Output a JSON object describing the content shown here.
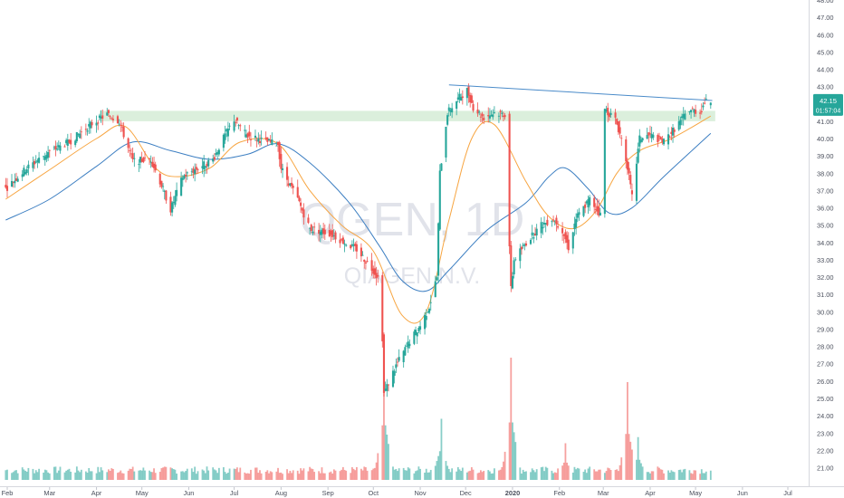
{
  "symbol": {
    "ticker": "QGEN",
    "interval": "1D",
    "company": "QIAGEN N.V."
  },
  "price_badge": {
    "price": "42.15",
    "countdown": "01:57:04"
  },
  "colors": {
    "up": "#26a69a",
    "down": "#ef5350",
    "ma_fast": "#f7a541",
    "ma_slow": "#3d7fc2",
    "trendline": "#4a8bc9",
    "zone": "#c8e6c9",
    "badge": "#26a69a"
  },
  "chart_data": {
    "type": "candlestick",
    "title": "",
    "y_axis": {
      "ylim": [
        20.4,
        48.0
      ],
      "ticks": [
        "21.00",
        "22.00",
        "23.00",
        "24.00",
        "25.00",
        "26.00",
        "27.00",
        "28.00",
        "29.00",
        "30.00",
        "31.00",
        "32.00",
        "33.00",
        "34.00",
        "35.00",
        "36.00",
        "37.00",
        "38.00",
        "39.00",
        "40.00",
        "41.00",
        "42.00",
        "43.00",
        "44.00",
        "45.00",
        "46.00",
        "47.00",
        "48.00"
      ]
    },
    "x_axis": {
      "months": [
        "Feb",
        "Mar",
        "Apr",
        "May",
        "Jun",
        "Jul",
        "Aug",
        "Sep",
        "Oct",
        "Nov",
        "Dec",
        "2020",
        "Feb",
        "Mar",
        "Apr",
        "May",
        "Jun",
        "Jul"
      ]
    },
    "price_path": [
      [
        "2019-01-31",
        37.1
      ],
      [
        "2019-02-14",
        38.3
      ],
      [
        "2019-02-28",
        39.2
      ],
      [
        "2019-03-14",
        39.8
      ],
      [
        "2019-03-28",
        40.8
      ],
      [
        "2019-04-08",
        41.4
      ],
      [
        "2019-04-16",
        41.0
      ],
      [
        "2019-04-25",
        38.7
      ],
      [
        "2019-05-07",
        38.8
      ],
      [
        "2019-05-14",
        37.3
      ],
      [
        "2019-05-20",
        35.9
      ],
      [
        "2019-05-28",
        37.8
      ],
      [
        "2019-06-07",
        38.3
      ],
      [
        "2019-06-17",
        38.8
      ],
      [
        "2019-06-25",
        40.2
      ],
      [
        "2019-07-01",
        41.1
      ],
      [
        "2019-07-09",
        40.2
      ],
      [
        "2019-07-23",
        39.8
      ],
      [
        "2019-07-30",
        39.7
      ],
      [
        "2019-08-01",
        38.3
      ],
      [
        "2019-08-12",
        36.5
      ],
      [
        "2019-08-20",
        34.8
      ],
      [
        "2019-09-03",
        34.5
      ],
      [
        "2019-09-12",
        34.0
      ],
      [
        "2019-09-20",
        33.6
      ],
      [
        "2019-10-01",
        32.4
      ],
      [
        "2019-10-06",
        31.7
      ],
      [
        "2019-10-08",
        25.3
      ],
      [
        "2019-10-16",
        26.9
      ],
      [
        "2019-10-25",
        28.3
      ],
      [
        "2019-11-01",
        29.2
      ],
      [
        "2019-11-07",
        30.3
      ],
      [
        "2019-11-12",
        32.0
      ],
      [
        "2019-11-14",
        38.0
      ],
      [
        "2019-11-19",
        41.5
      ],
      [
        "2019-11-26",
        42.3
      ],
      [
        "2019-12-02",
        42.8
      ],
      [
        "2019-12-06",
        41.8
      ],
      [
        "2019-12-13",
        41.2
      ],
      [
        "2019-12-20",
        41.5
      ],
      [
        "2019-12-27",
        41.4
      ],
      [
        "2019-12-31",
        31.3
      ],
      [
        "2020-01-02",
        33.0
      ],
      [
        "2020-01-10",
        34.0
      ],
      [
        "2020-01-20",
        35.0
      ],
      [
        "2020-01-28",
        35.4
      ],
      [
        "2020-02-03",
        34.7
      ],
      [
        "2020-02-07",
        33.7
      ],
      [
        "2020-02-12",
        35.4
      ],
      [
        "2020-02-21",
        36.5
      ],
      [
        "2020-02-28",
        35.6
      ],
      [
        "2020-03-02",
        41.7
      ],
      [
        "2020-03-09",
        41.1
      ],
      [
        "2020-03-13",
        40.0
      ],
      [
        "2020-03-17",
        38.4
      ],
      [
        "2020-03-20",
        36.6
      ],
      [
        "2020-03-25",
        40.0
      ],
      [
        "2020-04-01",
        40.2
      ],
      [
        "2020-04-10",
        39.8
      ],
      [
        "2020-04-20",
        40.9
      ],
      [
        "2020-04-27",
        41.7
      ],
      [
        "2020-05-04",
        41.5
      ],
      [
        "2020-05-07",
        42.1
      ],
      [
        "2020-05-11",
        42.15
      ]
    ],
    "overlays": {
      "ma_fast": [
        [
          "2019-01-31",
          36.5
        ],
        [
          "2019-03-01",
          38.2
        ],
        [
          "2019-04-01",
          40.0
        ],
        [
          "2019-04-20",
          40.7
        ],
        [
          "2019-05-10",
          38.3
        ],
        [
          "2019-05-25",
          37.8
        ],
        [
          "2019-06-15",
          38.3
        ],
        [
          "2019-07-05",
          39.8
        ],
        [
          "2019-07-30",
          39.7
        ],
        [
          "2019-08-20",
          37.0
        ],
        [
          "2019-09-10",
          35.0
        ],
        [
          "2019-10-01",
          33.5
        ],
        [
          "2019-10-20",
          29.8
        ],
        [
          "2019-11-05",
          30.0
        ],
        [
          "2019-11-20",
          35.3
        ],
        [
          "2019-12-05",
          40.0
        ],
        [
          "2019-12-20",
          40.8
        ],
        [
          "2020-01-10",
          37.5
        ],
        [
          "2020-01-25",
          35.5
        ],
        [
          "2020-02-10",
          34.8
        ],
        [
          "2020-02-25",
          35.8
        ],
        [
          "2020-03-10",
          38.0
        ],
        [
          "2020-03-25",
          39.3
        ],
        [
          "2020-04-15",
          40.0
        ],
        [
          "2020-05-11",
          41.3
        ]
      ],
      "ma_slow": [
        [
          "2019-01-31",
          35.3
        ],
        [
          "2019-03-01",
          36.5
        ],
        [
          "2019-04-01",
          38.4
        ],
        [
          "2019-04-25",
          39.8
        ],
        [
          "2019-05-20",
          39.3
        ],
        [
          "2019-06-15",
          38.8
        ],
        [
          "2019-07-10",
          39.1
        ],
        [
          "2019-07-30",
          39.7
        ],
        [
          "2019-08-20",
          38.6
        ],
        [
          "2019-09-15",
          36.3
        ],
        [
          "2019-10-05",
          33.8
        ],
        [
          "2019-10-20",
          31.8
        ],
        [
          "2019-11-05",
          31.2
        ],
        [
          "2019-11-20",
          32.4
        ],
        [
          "2019-12-15",
          34.7
        ],
        [
          "2020-01-10",
          36.3
        ],
        [
          "2020-01-25",
          37.8
        ],
        [
          "2020-02-05",
          38.3
        ],
        [
          "2020-02-20",
          37.1
        ],
        [
          "2020-03-05",
          35.7
        ],
        [
          "2020-03-20",
          36.0
        ],
        [
          "2020-04-10",
          37.8
        ],
        [
          "2020-05-11",
          40.3
        ]
      ],
      "trendline": [
        [
          "2019-11-20",
          43.1
        ],
        [
          "2020-05-12",
          42.2
        ]
      ],
      "support_zone": {
        "from": "2019-04-03",
        "to": "2020-05-14",
        "low": 41.0,
        "high": 41.6
      }
    },
    "volume": {
      "spikes": [
        [
          "2019-10-08",
          0.95
        ],
        [
          "2019-11-15",
          0.5
        ],
        [
          "2019-12-31",
          1.0
        ],
        [
          "2020-02-05",
          0.3
        ],
        [
          "2020-03-17",
          0.8
        ],
        [
          "2020-03-24",
          0.35
        ]
      ]
    },
    "grid": false,
    "legend": "none"
  }
}
